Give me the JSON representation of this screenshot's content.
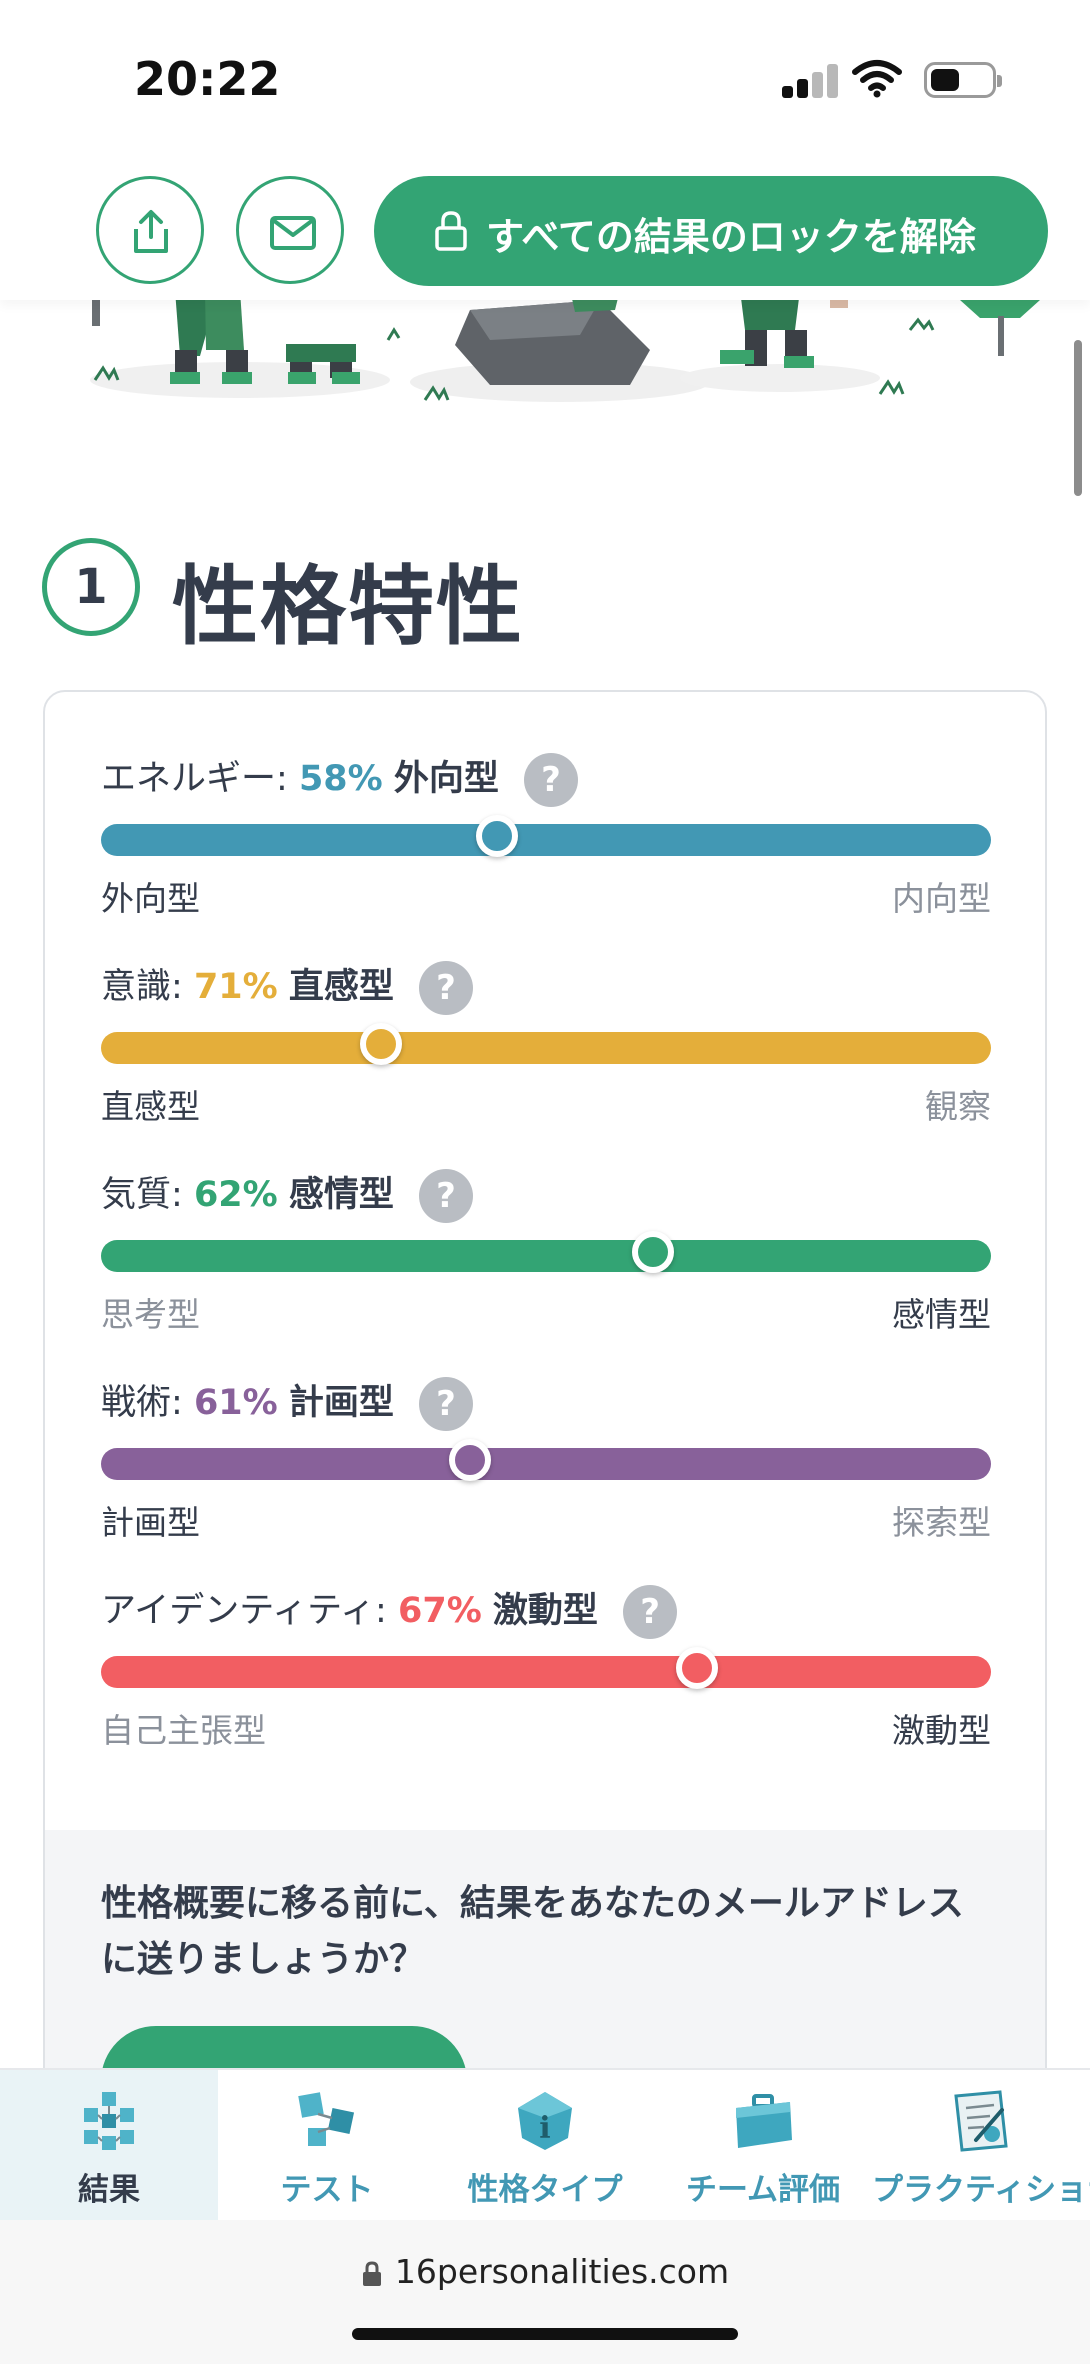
{
  "status_bar": {
    "time": "20:22"
  },
  "header": {
    "unlock_label": "すべての結果のロックを解除"
  },
  "section": {
    "number": "1",
    "title": "性格特性"
  },
  "traits": [
    {
      "label": "エネルギー:",
      "percent": "58%",
      "type": "外向型",
      "left_pole": "外向型",
      "right_pole": "内向型",
      "position": 44.5,
      "active_side": "left",
      "color": "#4298b4"
    },
    {
      "label": "意識:",
      "percent": "71%",
      "type": "直感型",
      "left_pole": "直感型",
      "right_pole": "観察",
      "position": 31.5,
      "active_side": "left",
      "color": "#e4ae3a"
    },
    {
      "label": "気質:",
      "percent": "62%",
      "type": "感情型",
      "left_pole": "思考型",
      "right_pole": "感情型",
      "position": 62,
      "active_side": "right",
      "color": "#33a474"
    },
    {
      "label": "戦術:",
      "percent": "61%",
      "type": "計画型",
      "left_pole": "計画型",
      "right_pole": "探索型",
      "position": 41.5,
      "active_side": "left",
      "color": "#88619a"
    },
    {
      "label": "アイデンティティ:",
      "percent": "67%",
      "type": "激動型",
      "left_pole": "自己主張型",
      "right_pole": "激動型",
      "position": 67,
      "active_side": "right",
      "color": "#f25e62"
    }
  ],
  "email_prompt": {
    "text": "性格概要に移る前に、結果をあなたのメールアドレスに送りましょうか？"
  },
  "bottom_nav": [
    {
      "label": "結果",
      "icon": "results-cubes-icon",
      "active": true
    },
    {
      "label": "テスト",
      "icon": "test-cubes-icon",
      "active": false
    },
    {
      "label": "性格タイプ",
      "icon": "info-gem-icon",
      "active": false
    },
    {
      "label": "チーム評価",
      "icon": "briefcase-icon",
      "active": false
    },
    {
      "label": "プラクティショナ",
      "icon": "certificate-icon",
      "active": false
    }
  ],
  "browser": {
    "url": "16personalities.com"
  },
  "colors": {
    "brand_green": "#33a474",
    "text_dark": "#343c4b",
    "muted": "#8b919b"
  }
}
